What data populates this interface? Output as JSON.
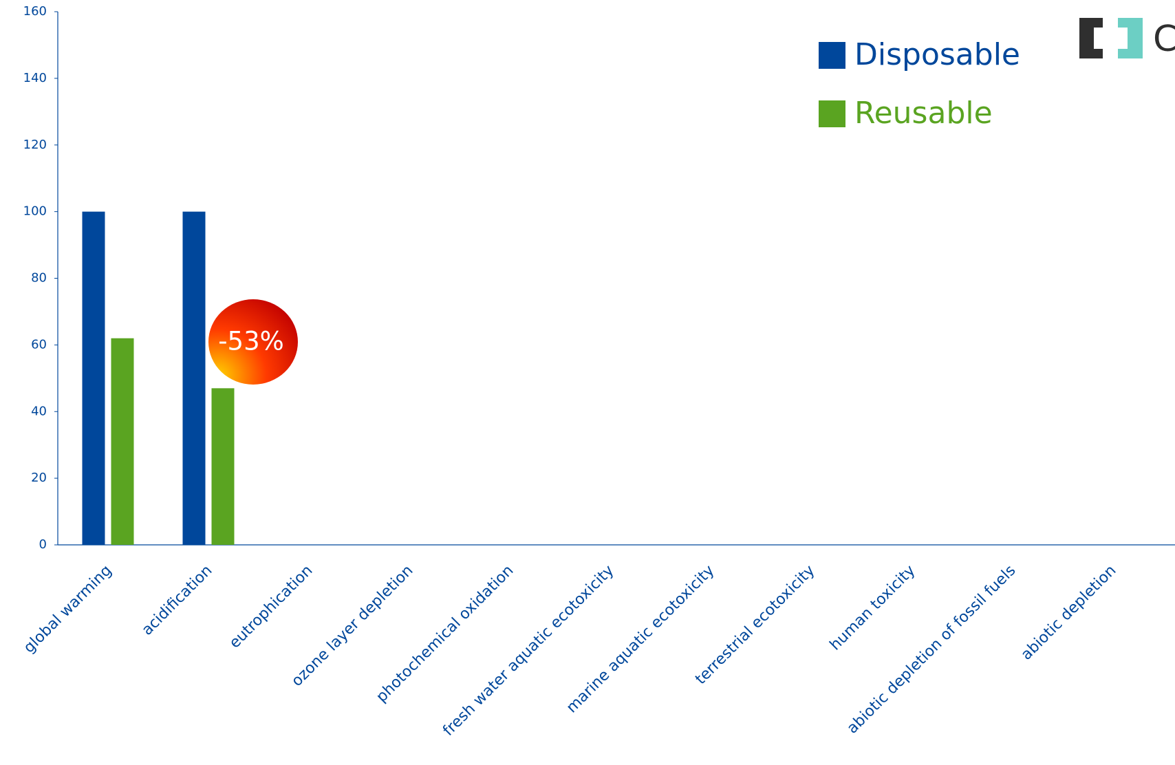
{
  "chart_data": {
    "type": "bar",
    "categories": [
      "global warming",
      "acidification",
      "eutrophication",
      "ozone layer depletion",
      "photochemical oxidation",
      "fresh water aquatic ecotoxicity",
      "marine aquatic ecotoxicity",
      "terrestrial ecotoxicity",
      "human toxicity",
      "abiotic depletion of fossil fuels",
      "abiotic depletion"
    ],
    "series": [
      {
        "name": "Disposable",
        "color": "#00479b",
        "values": [
          100,
          100,
          null,
          null,
          null,
          null,
          null,
          null,
          null,
          null,
          null
        ]
      },
      {
        "name": "Reusable",
        "color": "#5aa421",
        "values": [
          62,
          47,
          null,
          null,
          null,
          null,
          null,
          null,
          null,
          null,
          null
        ]
      }
    ],
    "ylim": [
      0,
      160
    ],
    "yticks": [
      0,
      20,
      40,
      60,
      80,
      100,
      120,
      140,
      160
    ],
    "annotation": "-53%",
    "logo_text": "C",
    "legend": "upper right"
  }
}
